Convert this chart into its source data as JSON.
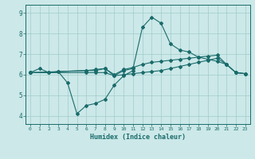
{
  "xlabel": "Humidex (Indice chaleur)",
  "bg_color": "#cce8e8",
  "line_color": "#1a6b6b",
  "grid_color": "#a0cccc",
  "ylim": [
    3.6,
    9.4
  ],
  "yticks": [
    4,
    5,
    6,
    7,
    8,
    9
  ],
  "xlim": [
    -0.5,
    23.5
  ],
  "xticks": [
    0,
    1,
    2,
    3,
    4,
    5,
    6,
    7,
    8,
    9,
    10,
    11,
    12,
    13,
    14,
    15,
    16,
    17,
    18,
    19,
    20,
    21,
    22,
    23
  ],
  "line1_x": [
    0,
    1,
    2,
    3,
    6,
    7,
    8,
    9,
    10,
    11,
    12,
    13,
    14,
    15,
    16,
    17,
    18,
    19,
    20,
    21,
    22,
    23
  ],
  "line1_y": [
    6.1,
    6.3,
    6.1,
    6.15,
    6.2,
    6.2,
    6.3,
    5.95,
    6.2,
    6.3,
    8.3,
    8.8,
    8.5,
    7.5,
    7.2,
    7.1,
    6.85,
    6.75,
    6.65,
    6.5,
    6.1,
    6.05
  ],
  "line2_x": [
    0,
    2,
    3,
    4,
    5,
    6,
    7,
    8,
    9,
    10,
    11
  ],
  "line2_y": [
    6.1,
    6.1,
    6.15,
    5.6,
    4.1,
    4.5,
    4.6,
    4.8,
    5.5,
    5.95,
    6.2
  ],
  "line3_x": [
    0,
    6,
    7,
    8,
    9,
    10,
    11,
    12,
    13,
    14,
    15,
    16,
    17,
    18,
    19,
    20,
    21,
    22,
    23
  ],
  "line3_y": [
    6.1,
    6.2,
    6.25,
    6.3,
    6.0,
    6.25,
    6.35,
    6.5,
    6.6,
    6.65,
    6.7,
    6.75,
    6.8,
    6.85,
    6.9,
    6.95,
    6.5,
    6.1,
    6.05
  ],
  "line4_x": [
    0,
    6,
    7,
    8,
    9,
    10,
    11,
    12,
    13,
    14,
    15,
    16,
    17,
    18,
    19,
    20,
    21,
    22,
    23
  ],
  "line4_y": [
    6.1,
    6.1,
    6.1,
    6.1,
    5.95,
    6.0,
    6.05,
    6.1,
    6.15,
    6.2,
    6.3,
    6.4,
    6.5,
    6.6,
    6.7,
    6.8,
    6.5,
    6.1,
    6.05
  ]
}
